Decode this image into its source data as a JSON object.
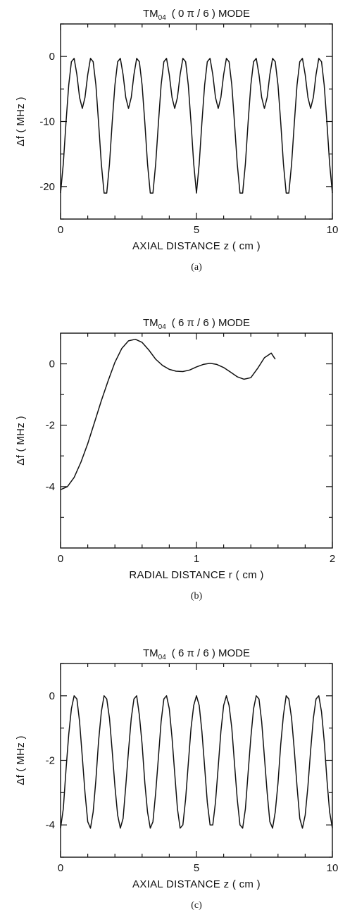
{
  "chart_data": [
    {
      "type": "line",
      "title": {
        "main": "TM",
        "sub": "04",
        "rest": "( 0 π / 6 )   MODE"
      },
      "xlabel": "AXIAL DISTANCE  z ( cm )",
      "ylabel": "Δf  ( MHz )",
      "caption": "(a)",
      "xlim": [
        0,
        10
      ],
      "ylim": [
        -25,
        5
      ],
      "xticks": [
        0,
        5,
        10
      ],
      "xtick_labels": [
        "0",
        "5",
        "10"
      ],
      "xminor": [
        1,
        2,
        3,
        4,
        6,
        7,
        8,
        9
      ],
      "yticks": [
        0,
        -10,
        -20
      ],
      "ytick_labels": [
        "0",
        "-10",
        "-20"
      ],
      "yminor": [
        5,
        -5,
        -15,
        -25
      ],
      "grid": false,
      "series": [
        {
          "x": [
            0,
            0.1,
            0.2,
            0.3,
            0.4,
            0.5,
            0.6,
            0.7,
            0.8,
            0.9,
            1.0,
            1.1,
            1.2,
            1.3,
            1.4,
            1.5,
            1.6,
            1.7,
            1.8,
            1.9,
            2.0,
            2.1,
            2.2,
            2.3,
            2.4,
            2.5,
            2.6,
            2.7,
            2.8,
            2.9,
            3.0,
            3.1,
            3.2,
            3.3,
            3.4,
            3.5,
            3.6,
            3.7,
            3.8,
            3.9,
            4.0,
            4.1,
            4.2,
            4.3,
            4.4,
            4.5,
            4.6,
            4.7,
            4.8,
            4.9,
            5.0,
            5.1,
            5.2,
            5.3,
            5.4,
            5.5,
            5.6,
            5.7,
            5.8,
            5.9,
            6.0,
            6.1,
            6.2,
            6.3,
            6.4,
            6.5,
            6.6,
            6.7,
            6.8,
            6.9,
            7.0,
            7.1,
            7.2,
            7.3,
            7.4,
            7.5,
            7.6,
            7.7,
            7.8,
            7.9,
            8.0,
            8.1,
            8.2,
            8.3,
            8.4,
            8.5,
            8.6,
            8.7,
            8.8,
            8.9,
            9.0,
            9.1,
            9.2,
            9.3,
            9.4,
            9.5,
            9.6,
            9.7,
            9.8,
            9.9,
            10.0
          ],
          "y": [
            -21.0,
            -16.5,
            -10.2,
            -4.4,
            -0.8,
            -0.3,
            -2.8,
            -6.3,
            -8.0,
            -6.3,
            -2.8,
            -0.3,
            -0.8,
            -4.4,
            -10.2,
            -16.5,
            -21.0,
            -21.0,
            -16.5,
            -10.2,
            -4.4,
            -0.8,
            -0.3,
            -2.8,
            -6.3,
            -8.0,
            -6.3,
            -2.8,
            -0.3,
            -0.8,
            -4.4,
            -10.2,
            -16.5,
            -21.0,
            -21.0,
            -16.5,
            -10.2,
            -4.4,
            -0.8,
            -0.3,
            -2.8,
            -6.3,
            -8.0,
            -6.3,
            -2.8,
            -0.3,
            -0.8,
            -4.4,
            -10.2,
            -16.5,
            -21.0,
            -16.5,
            -10.2,
            -4.4,
            -0.8,
            -0.3,
            -2.8,
            -6.3,
            -8.0,
            -6.3,
            -2.8,
            -0.3,
            -0.8,
            -4.4,
            -10.2,
            -16.5,
            -21.0,
            -21.0,
            -16.5,
            -10.2,
            -4.4,
            -0.8,
            -0.3,
            -2.8,
            -6.3,
            -8.0,
            -6.3,
            -2.8,
            -0.3,
            -0.8,
            -4.4,
            -10.2,
            -16.5,
            -21.0,
            -21.0,
            -16.5,
            -10.2,
            -4.4,
            -0.8,
            -0.3,
            -2.8,
            -6.3,
            -8.0,
            -6.3,
            -2.8,
            -0.3,
            -0.8,
            -4.4,
            -10.2,
            -16.5,
            -21.0
          ]
        }
      ]
    },
    {
      "type": "line",
      "title": {
        "main": "TM",
        "sub": "04",
        "rest": "( 6 π / 6 )   MODE"
      },
      "xlabel": "RADIAL  DISTANCE  r ( cm )",
      "ylabel": "Δf  ( MHz )",
      "caption": "(b)",
      "xlim": [
        0,
        2
      ],
      "ylim": [
        -6,
        1
      ],
      "xticks": [
        0,
        1,
        2
      ],
      "xtick_labels": [
        "0",
        "1",
        "2"
      ],
      "xminor": [
        0.2,
        0.4,
        0.6,
        0.8,
        1.2,
        1.4,
        1.6,
        1.8
      ],
      "yticks": [
        0,
        -2,
        -4
      ],
      "ytick_labels": [
        "0",
        "-2",
        "-4"
      ],
      "yminor": [
        -1,
        -3,
        -5
      ],
      "grid": false,
      "series": [
        {
          "x": [
            0,
            0.05,
            0.1,
            0.15,
            0.2,
            0.25,
            0.3,
            0.35,
            0.4,
            0.45,
            0.5,
            0.55,
            0.6,
            0.65,
            0.7,
            0.75,
            0.8,
            0.85,
            0.9,
            0.95,
            1.0,
            1.05,
            1.1,
            1.15,
            1.2,
            1.25,
            1.3,
            1.35,
            1.4,
            1.45,
            1.5,
            1.55,
            1.58
          ],
          "y": [
            -4.1,
            -4.0,
            -3.7,
            -3.2,
            -2.6,
            -1.9,
            -1.2,
            -0.55,
            0.05,
            0.5,
            0.75,
            0.8,
            0.7,
            0.45,
            0.15,
            -0.05,
            -0.18,
            -0.24,
            -0.25,
            -0.2,
            -0.1,
            -0.02,
            0.02,
            -0.02,
            -0.12,
            -0.27,
            -0.42,
            -0.5,
            -0.45,
            -0.15,
            0.2,
            0.35,
            0.15
          ]
        }
      ]
    },
    {
      "type": "line",
      "title": {
        "main": "TM",
        "sub": "04",
        "rest": "( 6 π / 6 )   MODE"
      },
      "xlabel": "AXIAL DISTANCE  z ( cm )",
      "ylabel": "Δf  ( MHz )",
      "caption": "(c)",
      "xlim": [
        0,
        10
      ],
      "ylim": [
        -5,
        1
      ],
      "xticks": [
        0,
        5,
        10
      ],
      "xtick_labels": [
        "0",
        "5",
        "10"
      ],
      "xminor": [
        1,
        2,
        3,
        4,
        6,
        7,
        8,
        9
      ],
      "yticks": [
        0,
        -2,
        -4
      ],
      "ytick_labels": [
        "0",
        "-2",
        "-4"
      ],
      "yminor": [
        1,
        -1,
        -3,
        -5
      ],
      "grid": false,
      "series": [
        {
          "x": [
            0,
            0.1,
            0.2,
            0.3,
            0.4,
            0.5,
            0.6,
            0.7,
            0.8,
            0.9,
            1.0,
            1.1,
            1.2,
            1.3,
            1.4,
            1.5,
            1.6,
            1.7,
            1.8,
            1.9,
            2.0,
            2.1,
            2.2,
            2.3,
            2.4,
            2.5,
            2.6,
            2.7,
            2.8,
            2.9,
            3.0,
            3.1,
            3.2,
            3.3,
            3.4,
            3.5,
            3.6,
            3.7,
            3.8,
            3.9,
            4.0,
            4.1,
            4.2,
            4.3,
            4.4,
            4.5,
            4.6,
            4.7,
            4.8,
            4.9,
            5.0,
            5.1,
            5.2,
            5.3,
            5.4,
            5.5,
            5.6,
            5.7,
            5.8,
            5.9,
            6.0,
            6.1,
            6.2,
            6.3,
            6.4,
            6.5,
            6.6,
            6.7,
            6.8,
            6.9,
            7.0,
            7.1,
            7.2,
            7.3,
            7.4,
            7.5,
            7.6,
            7.7,
            7.8,
            7.9,
            8.0,
            8.1,
            8.2,
            8.3,
            8.4,
            8.5,
            8.6,
            8.7,
            8.8,
            8.9,
            9.0,
            9.1,
            9.2,
            9.3,
            9.4,
            9.5,
            9.6,
            9.7,
            9.8,
            9.9,
            10.0
          ],
          "y": [
            -4.1,
            -3.5,
            -2.3,
            -1.2,
            -0.4,
            -0.0,
            -0.1,
            -0.8,
            -1.9,
            -3.0,
            -3.9,
            -4.1,
            -3.6,
            -2.6,
            -1.4,
            -0.5,
            -0.0,
            -0.1,
            -0.7,
            -1.7,
            -2.8,
            -3.7,
            -4.1,
            -3.8,
            -2.8,
            -1.7,
            -0.7,
            -0.1,
            -0.0,
            -0.6,
            -1.5,
            -2.7,
            -3.6,
            -4.1,
            -3.9,
            -3.0,
            -1.9,
            -0.8,
            -0.1,
            -0.0,
            -0.4,
            -1.3,
            -2.4,
            -3.5,
            -4.1,
            -4.0,
            -3.2,
            -2.1,
            -1.0,
            -0.3,
            -0.0,
            -0.3,
            -1.1,
            -2.2,
            -3.3,
            -4.0,
            -4.0,
            -3.3,
            -2.2,
            -1.1,
            -0.3,
            -0.0,
            -0.3,
            -1.0,
            -2.1,
            -3.2,
            -4.0,
            -4.1,
            -3.5,
            -2.4,
            -1.3,
            -0.4,
            -0.0,
            -0.1,
            -0.8,
            -1.9,
            -3.0,
            -3.9,
            -4.1,
            -3.6,
            -2.7,
            -1.5,
            -0.6,
            -0.0,
            -0.1,
            -0.7,
            -1.7,
            -2.8,
            -3.8,
            -4.1,
            -3.7,
            -2.8,
            -1.7,
            -0.7,
            -0.1,
            -0.0,
            -0.5,
            -1.4,
            -2.6,
            -3.6,
            -4.1
          ]
        }
      ]
    }
  ]
}
